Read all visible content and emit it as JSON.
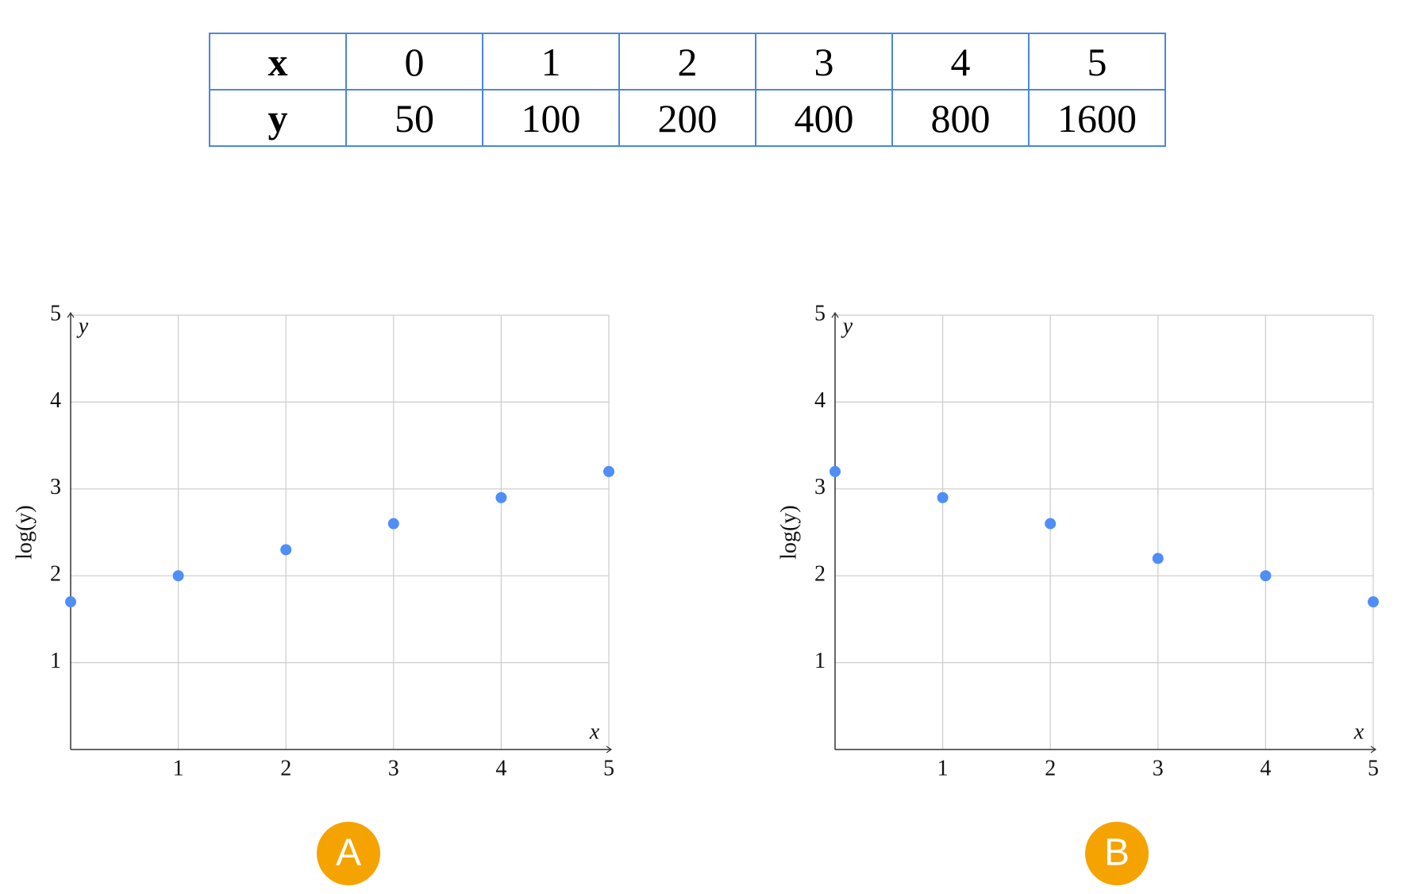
{
  "table": {
    "rows": [
      [
        "x",
        0,
        1,
        2,
        3,
        4,
        5
      ],
      [
        "y",
        50,
        100,
        200,
        400,
        800,
        1600
      ]
    ]
  },
  "chart_data": [
    {
      "type": "scatter",
      "x_label": "x",
      "y_axis_name": "y",
      "y_label": "log(y)",
      "x": [
        0,
        1,
        2,
        3,
        4,
        5
      ],
      "series": [
        {
          "color": "#4f8ef7",
          "values": [
            1.7,
            2.0,
            2.3,
            2.6,
            2.9,
            3.2
          ]
        }
      ],
      "xlim": [
        0,
        5
      ],
      "ylim": [
        0,
        5
      ],
      "xticks": [
        1,
        2,
        3,
        4,
        5
      ],
      "yticks": [
        1,
        2,
        3,
        4,
        5
      ],
      "grid": true
    },
    {
      "type": "scatter",
      "x_label": "x",
      "y_axis_name": "y",
      "y_label": "log(y)",
      "x": [
        0,
        1,
        2,
        3,
        4,
        5
      ],
      "series": [
        {
          "color": "#4f8ef7",
          "values": [
            3.2,
            2.9,
            2.6,
            2.2,
            2.0,
            1.7
          ]
        }
      ],
      "xlim": [
        0,
        5
      ],
      "ylim": [
        0,
        5
      ],
      "xticks": [
        1,
        2,
        3,
        4,
        5
      ],
      "yticks": [
        1,
        2,
        3,
        4,
        5
      ],
      "grid": true
    }
  ],
  "options": [
    "A",
    "B"
  ]
}
